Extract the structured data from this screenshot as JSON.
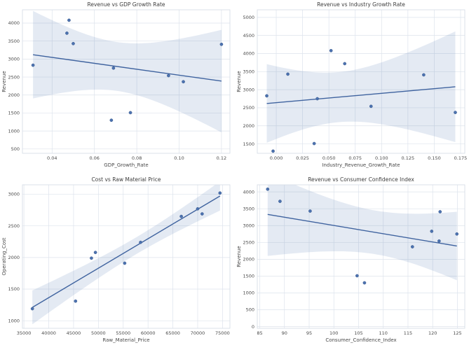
{
  "figure": {
    "background": "#ffffff",
    "point_color": "#4c72b0",
    "line_color": "#3f639f",
    "band_color": "rgba(76,114,176,0.15)",
    "grid_color": "#dde3ec",
    "spine_color": "#d3dae4",
    "title_color": "#3d3d3d",
    "tick_color": "#4a4a4a"
  },
  "chart_data": [
    {
      "type": "scatter",
      "title": "Revenue vs GDP Growth Rate",
      "xlabel": "GDP_Growth_Rate",
      "ylabel": "Revenue",
      "x": [
        0.031,
        0.047,
        0.048,
        0.05,
        0.068,
        0.069,
        0.077,
        0.095,
        0.102,
        0.12
      ],
      "y": [
        2830,
        3720,
        4080,
        3430,
        1300,
        2750,
        1510,
        2540,
        2370,
        3410
      ],
      "xlim": [
        0.026,
        0.124
      ],
      "ylim": [
        380,
        4370
      ],
      "xticks": [
        0.04,
        0.06,
        0.08,
        0.1,
        0.12
      ],
      "xtick_labels": [
        "0.04",
        "0.06",
        "0.08",
        "0.10",
        "0.12"
      ],
      "yticks": [
        500,
        1000,
        1500,
        2000,
        2500,
        3000,
        3500,
        4000
      ],
      "ytick_labels": [
        "500",
        "1000",
        "1500",
        "2000",
        "2500",
        "3000",
        "3500",
        "4000"
      ],
      "regression": true,
      "ci": 95,
      "grid": true
    },
    {
      "type": "scatter",
      "title": "Revenue vs Industry Growth Rate",
      "xlabel": "Industry_Revenue_Growth_Rate",
      "ylabel": "Revenue",
      "x": [
        -0.009,
        -0.003,
        0.011,
        0.036,
        0.039,
        0.052,
        0.065,
        0.09,
        0.14,
        0.17
      ],
      "y": [
        2830,
        1300,
        3430,
        1510,
        2750,
        4080,
        3720,
        2540,
        3410,
        2370
      ],
      "xlim": [
        -0.018,
        0.179
      ],
      "ylim": [
        1240,
        5210
      ],
      "xticks": [
        0.0,
        0.025,
        0.05,
        0.075,
        0.1,
        0.125,
        0.15,
        0.175
      ],
      "xtick_labels": [
        "0.000",
        "0.025",
        "0.050",
        "0.075",
        "0.100",
        "0.125",
        "0.150",
        "0.175"
      ],
      "yticks": [
        1500,
        2000,
        2500,
        3000,
        3500,
        4000,
        4500,
        5000
      ],
      "ytick_labels": [
        "1500",
        "2000",
        "2500",
        "3000",
        "3500",
        "4000",
        "4500",
        "5000"
      ],
      "regression": true,
      "ci": 95,
      "grid": true
    },
    {
      "type": "scatter",
      "title": "Cost vs Raw Material Price",
      "xlabel": "Raw_Material_Price",
      "ylabel": "Operating_Cost",
      "x": [
        36700,
        45400,
        48600,
        49400,
        55300,
        58500,
        66700,
        70000,
        70900,
        74500
      ],
      "y": [
        1190,
        1310,
        1990,
        2080,
        1910,
        2240,
        2650,
        2770,
        2690,
        3020
      ],
      "xlim": [
        34700,
        76500
      ],
      "ylim": [
        880,
        3150
      ],
      "xticks": [
        35000,
        40000,
        45000,
        50000,
        55000,
        60000,
        65000,
        70000,
        75000
      ],
      "xtick_labels": [
        "35000",
        "40000",
        "45000",
        "50000",
        "55000",
        "60000",
        "65000",
        "70000",
        "75000"
      ],
      "yticks": [
        1000,
        1500,
        2000,
        2500,
        3000
      ],
      "ytick_labels": [
        "1000",
        "1500",
        "2000",
        "2500",
        "3000"
      ],
      "regression": true,
      "ci": 95,
      "grid": true
    },
    {
      "type": "scatter",
      "title": "Revenue vs Consumer Confidence Index",
      "xlabel": "Consumer_Confidence_Index",
      "ylabel": "Revenue",
      "x": [
        86.6,
        89.1,
        95.2,
        104.7,
        106.2,
        115.9,
        119.8,
        121.3,
        121.5,
        124.9
      ],
      "y": [
        4080,
        3720,
        3430,
        1510,
        1300,
        2370,
        2830,
        2540,
        3410,
        2750
      ],
      "xlim": [
        84.5,
        126.5
      ],
      "ylim": [
        -50,
        4210
      ],
      "xticks": [
        85,
        90,
        95,
        100,
        105,
        110,
        115,
        120,
        125
      ],
      "xtick_labels": [
        "85",
        "90",
        "95",
        "100",
        "105",
        "110",
        "115",
        "120",
        "125"
      ],
      "yticks": [
        0,
        500,
        1000,
        1500,
        2000,
        2500,
        3000,
        3500,
        4000
      ],
      "ytick_labels": [
        "0",
        "500",
        "1000",
        "1500",
        "2000",
        "2500",
        "3000",
        "3500",
        "4000"
      ],
      "regression": true,
      "ci": 95,
      "grid": true
    }
  ]
}
